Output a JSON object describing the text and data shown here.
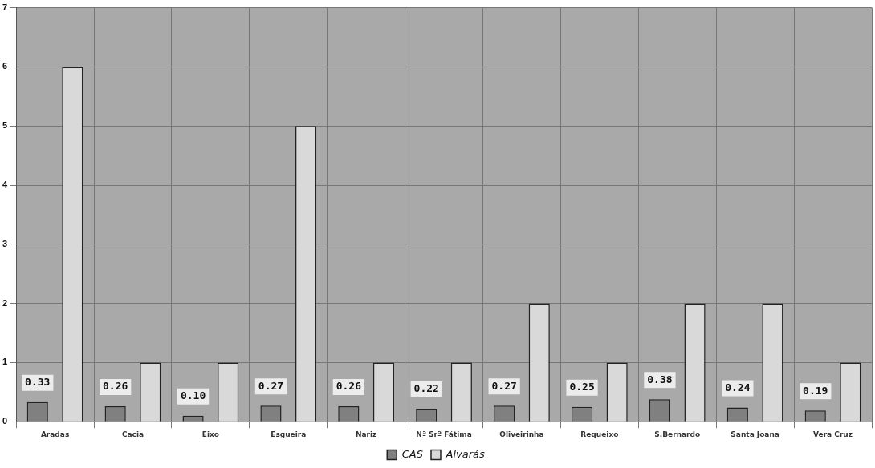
{
  "chart_data": {
    "type": "bar",
    "categories": [
      "Aradas",
      "Cacia",
      "Eixo",
      "Esgueira",
      "Nariz",
      "Nª Srª Fátima",
      "Oliveirinha",
      "Requeixo",
      "S.Bernardo",
      "Santa Joana",
      "Vera Cruz"
    ],
    "series": [
      {
        "name": "CAS",
        "color": "#808080",
        "values": [
          0.33,
          0.26,
          0.1,
          0.27,
          0.26,
          0.22,
          0.27,
          0.25,
          0.38,
          0.24,
          0.19
        ],
        "value_labels": [
          "0.33",
          "0.26",
          "0.10",
          "0.27",
          "0.26",
          "0.22",
          "0.27",
          "0.25",
          "0.38",
          "0.24",
          "0.19"
        ]
      },
      {
        "name": "Alvarás",
        "color": "#d9d9d9",
        "values": [
          6,
          1,
          1,
          5,
          1,
          1,
          2,
          1,
          2,
          2,
          1
        ]
      }
    ],
    "ylim": [
      0,
      7
    ],
    "yticks": [
      0,
      1,
      2,
      3,
      4,
      5,
      6,
      7
    ],
    "grid": true,
    "legend": "bottom"
  }
}
